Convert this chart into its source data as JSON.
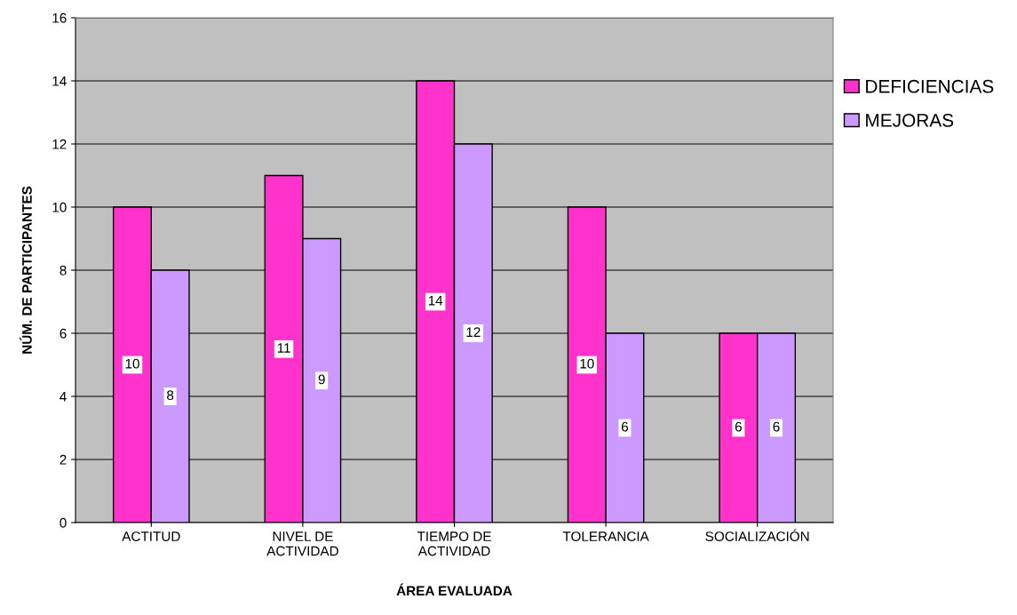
{
  "chart_data": {
    "type": "bar",
    "xlabel": "ÁREA EVALUADA",
    "ylabel": "NÚM. DE PARTICIPANTES",
    "categories": [
      "ACTITUD",
      "NIVEL DE\nACTIVIDAD",
      "TIEMPO DE\nACTIVIDAD",
      "TOLERANCIA",
      "SOCIALIZACIÓN"
    ],
    "series": [
      {
        "name": "DEFICIENCIAS",
        "color": "#ff33cc",
        "values": [
          10,
          11,
          14,
          10,
          6
        ]
      },
      {
        "name": "MEJORAS",
        "color": "#cc99ff",
        "values": [
          8,
          9,
          12,
          6,
          6
        ]
      }
    ],
    "ylim": [
      0,
      16
    ],
    "yticks": [
      0,
      2,
      4,
      6,
      8,
      10,
      12,
      14,
      16
    ],
    "grid": "y",
    "legend": "top right",
    "data_labels": true
  }
}
